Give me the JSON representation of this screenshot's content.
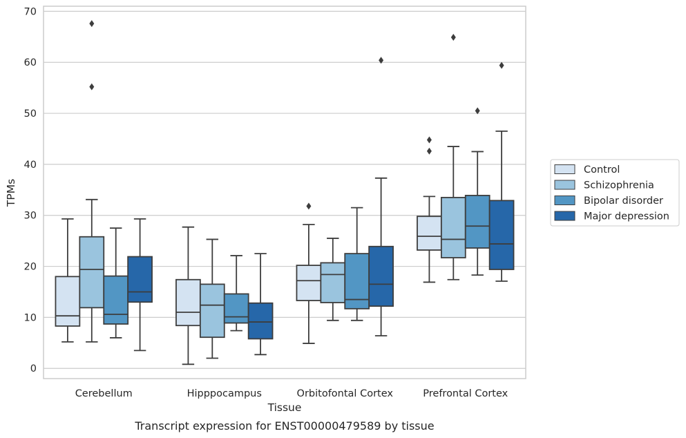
{
  "chart_data": {
    "type": "box",
    "title": "",
    "caption": "Transcript expression for ENST00000479589 by tissue",
    "xlabel": "Tissue",
    "ylabel": "TPMs",
    "ylim": [
      -2,
      71
    ],
    "yticks": [
      0,
      10,
      20,
      30,
      40,
      50,
      60,
      70
    ],
    "grid": "horizontal",
    "legend_position": "right",
    "categories": [
      "Cerebellum",
      "Hipppocampus",
      "Orbitofontal Cortex",
      "Prefrontal Cortex"
    ],
    "series": [
      {
        "name": "Control",
        "color": "#d4e3f2",
        "boxes": [
          {
            "low": 5.2,
            "q1": 8.3,
            "median": 10.3,
            "q3": 18.0,
            "high": 29.3,
            "outliers": []
          },
          {
            "low": 0.8,
            "q1": 8.4,
            "median": 11.0,
            "q3": 17.4,
            "high": 27.7,
            "outliers": []
          },
          {
            "low": 4.9,
            "q1": 13.3,
            "median": 17.2,
            "q3": 20.2,
            "high": 28.2,
            "outliers": [
              31.8
            ]
          },
          {
            "low": 16.9,
            "q1": 23.2,
            "median": 25.9,
            "q3": 29.8,
            "high": 33.7,
            "outliers": [
              42.6,
              44.8
            ]
          }
        ]
      },
      {
        "name": "Schizophrenia",
        "color": "#9ac4de",
        "boxes": [
          {
            "low": 5.2,
            "q1": 11.9,
            "median": 19.4,
            "q3": 25.8,
            "high": 33.1,
            "outliers": [
              55.2,
              67.6
            ]
          },
          {
            "low": 2.0,
            "q1": 6.1,
            "median": 12.4,
            "q3": 16.5,
            "high": 25.3,
            "outliers": []
          },
          {
            "low": 9.4,
            "q1": 12.9,
            "median": 18.4,
            "q3": 20.7,
            "high": 25.5,
            "outliers": []
          },
          {
            "low": 17.4,
            "q1": 21.7,
            "median": 25.3,
            "q3": 33.5,
            "high": 43.5,
            "outliers": [
              64.9
            ]
          }
        ]
      },
      {
        "name": "Bipolar disorder",
        "color": "#5296c4",
        "boxes": [
          {
            "low": 6.0,
            "q1": 8.7,
            "median": 10.6,
            "q3": 18.1,
            "high": 27.5,
            "outliers": []
          },
          {
            "low": 7.4,
            "q1": 8.9,
            "median": 10.1,
            "q3": 14.6,
            "high": 22.1,
            "outliers": []
          },
          {
            "low": 9.4,
            "q1": 11.7,
            "median": 13.5,
            "q3": 22.5,
            "high": 31.5,
            "outliers": []
          },
          {
            "low": 18.3,
            "q1": 23.6,
            "median": 27.9,
            "q3": 33.9,
            "high": 42.5,
            "outliers": [
              50.5
            ]
          }
        ]
      },
      {
        "name": "Major depression",
        "color": "#2667a9",
        "boxes": [
          {
            "low": 3.5,
            "q1": 13.0,
            "median": 15.0,
            "q3": 21.9,
            "high": 29.3,
            "outliers": []
          },
          {
            "low": 2.7,
            "q1": 5.8,
            "median": 9.1,
            "q3": 12.8,
            "high": 22.5,
            "outliers": []
          },
          {
            "low": 6.4,
            "q1": 12.2,
            "median": 16.5,
            "q3": 23.9,
            "high": 37.3,
            "outliers": [
              60.4
            ]
          },
          {
            "low": 17.1,
            "q1": 19.4,
            "median": 24.4,
            "q3": 32.9,
            "high": 46.5,
            "outliers": [
              59.4
            ]
          }
        ]
      }
    ]
  }
}
